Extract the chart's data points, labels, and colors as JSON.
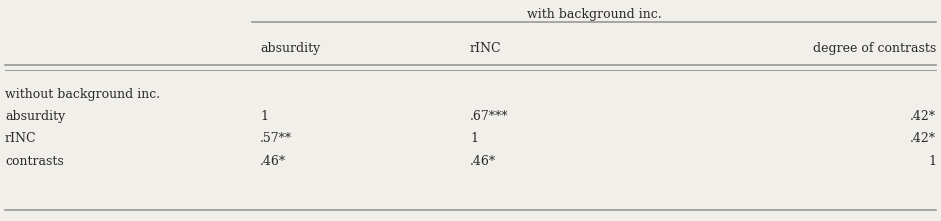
{
  "header_top_text": "with background inc.",
  "col_headers": [
    "absurdity",
    "rINC",
    "degree of contrasts"
  ],
  "row_labels": [
    "without background inc.",
    "absurdity",
    "rINC",
    "contrasts"
  ],
  "table_data": [
    [
      "",
      "",
      ""
    ],
    [
      "1",
      ".67***",
      ".42*"
    ],
    [
      ".57**",
      "1",
      ".42*"
    ],
    [
      ".46*",
      ".46*",
      "1"
    ]
  ],
  "bg_color": "#f0efea",
  "text_color": "#2a2a2a",
  "line_color": "#999999",
  "font_size": 9.0,
  "fig_width": 9.41,
  "fig_height": 2.21,
  "dpi": 100
}
